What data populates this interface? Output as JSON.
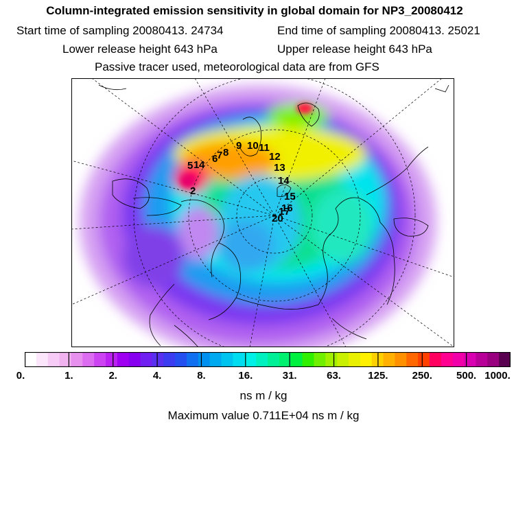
{
  "header": {
    "title": "Column-integrated emission sensitivity in global domain for NP3_20080412",
    "start_time": "Start time of sampling 20080413. 24734",
    "end_time": "End time of sampling 20080413. 25021",
    "lower_release": "Lower release height  643 hPa",
    "upper_release": "Upper release height  643 hPa",
    "note": "Passive tracer used, meteorological data are from GFS"
  },
  "colorbar": {
    "tick_labels": [
      "0.",
      "1.",
      "2.",
      "4.",
      "8.",
      "16.",
      "31.",
      "63.",
      "125.",
      "250.",
      "500.",
      "1000."
    ],
    "unit": "ns m / kg",
    "colors": [
      "#ffffff",
      "#fbe6fb",
      "#f6ccf6",
      "#f0b3f0",
      "#e890ee",
      "#dc6cf0",
      "#cc44f2",
      "#bb22f2",
      "#a000f2",
      "#8800f0",
      "#7020f0",
      "#5a30f0",
      "#3c3cf0",
      "#2450f0",
      "#1070f0",
      "#0090f0",
      "#00aaf0",
      "#00c4f0",
      "#00dcf0",
      "#00f0e8",
      "#00f0c0",
      "#00f098",
      "#00f070",
      "#00f040",
      "#30f000",
      "#70f000",
      "#a0f000",
      "#c8f000",
      "#e8f000",
      "#fff000",
      "#ffd000",
      "#ffb000",
      "#ff9000",
      "#ff6800",
      "#ff4000",
      "#ff0060",
      "#ff0090",
      "#f000a8",
      "#d800b0",
      "#b80098",
      "#980080",
      "#5a0050"
    ]
  },
  "max_value": "Maximum value  0.711E+04 ns m / kg",
  "track_labels": [
    "5",
    "6",
    "7",
    "8",
    "9",
    "10",
    "11",
    "12",
    "13",
    "14",
    "15",
    "16",
    "2",
    "20",
    "1",
    "4",
    "17"
  ],
  "map": {
    "projection": "polar stereographic, north pole"
  }
}
